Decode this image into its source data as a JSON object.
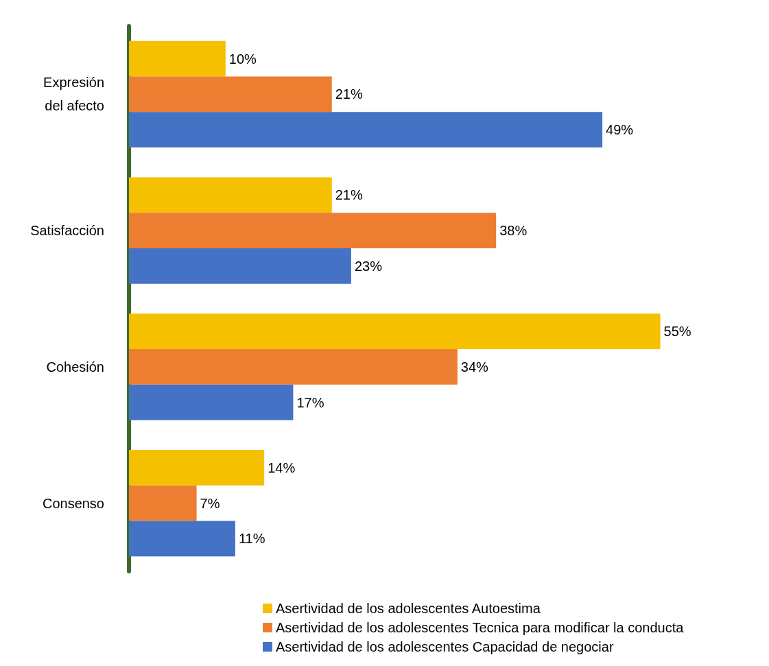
{
  "chart_data": {
    "type": "bar",
    "orientation": "horizontal",
    "categories": [
      "Expresión\ndel afecto",
      "Satisfacción",
      "Cohesión",
      "Consenso"
    ],
    "series": [
      {
        "name": "Asertividad de los adolescentes Autoestima",
        "color": "#f5c000",
        "values": [
          10,
          21,
          55,
          14
        ],
        "value_labels": [
          "10%",
          "21%",
          "55%",
          "14%"
        ]
      },
      {
        "name": "Asertividad de los adolescentes Tecnica para modificar la conducta",
        "color": "#ed7d31",
        "values": [
          21,
          38,
          34,
          7
        ],
        "value_labels": [
          "21%",
          "38%",
          "34%",
          "7%"
        ]
      },
      {
        "name": "Asertividad de los adolescentes Capacidad de negociar",
        "color": "#4472c4",
        "values": [
          49,
          23,
          17,
          11
        ],
        "value_labels": [
          "49%",
          "23%",
          "17%",
          "11%"
        ]
      }
    ],
    "grid": false,
    "legend": "bottom"
  }
}
